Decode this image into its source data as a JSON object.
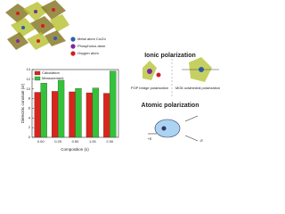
{
  "chart_data": {
    "type": "bar",
    "xlabel": "Composition (x)",
    "ylabel": "Dielectric constant (εr)",
    "categories": [
      "0.00",
      "0.25",
      "0.50",
      "1.00",
      "2.00"
    ],
    "series": [
      {
        "name": "Calculation",
        "color": "#d9251d",
        "values": [
          9.3,
          9.5,
          9.4,
          9.2,
          9.1
        ]
      },
      {
        "name": "Measurement",
        "color": "#33c33a",
        "values": [
          11.2,
          11.8,
          10.1,
          10.2,
          13.7
        ]
      }
    ],
    "ylim": [
      0,
      14
    ],
    "yticks": [
      0,
      2,
      4,
      6,
      8,
      10,
      12,
      14
    ],
    "legend": "upper left"
  },
  "atom_legend": [
    {
      "label": "Metal atom Cu/Zn",
      "color": "#2a5fb0"
    },
    {
      "label": "Phosphorus atom",
      "color": "#7a2aa0"
    },
    {
      "label": "Oxygen atom",
      "color": "#d02020"
    }
  ],
  "panels": {
    "ionic_title": "Ionic polarization",
    "pop_label": "POP bridge polarization",
    "mo6_label": "MO6 octahedral polarization",
    "atomic_title": "Atomic polarization",
    "plus_e": "+E",
    "minus_e": "-E"
  }
}
